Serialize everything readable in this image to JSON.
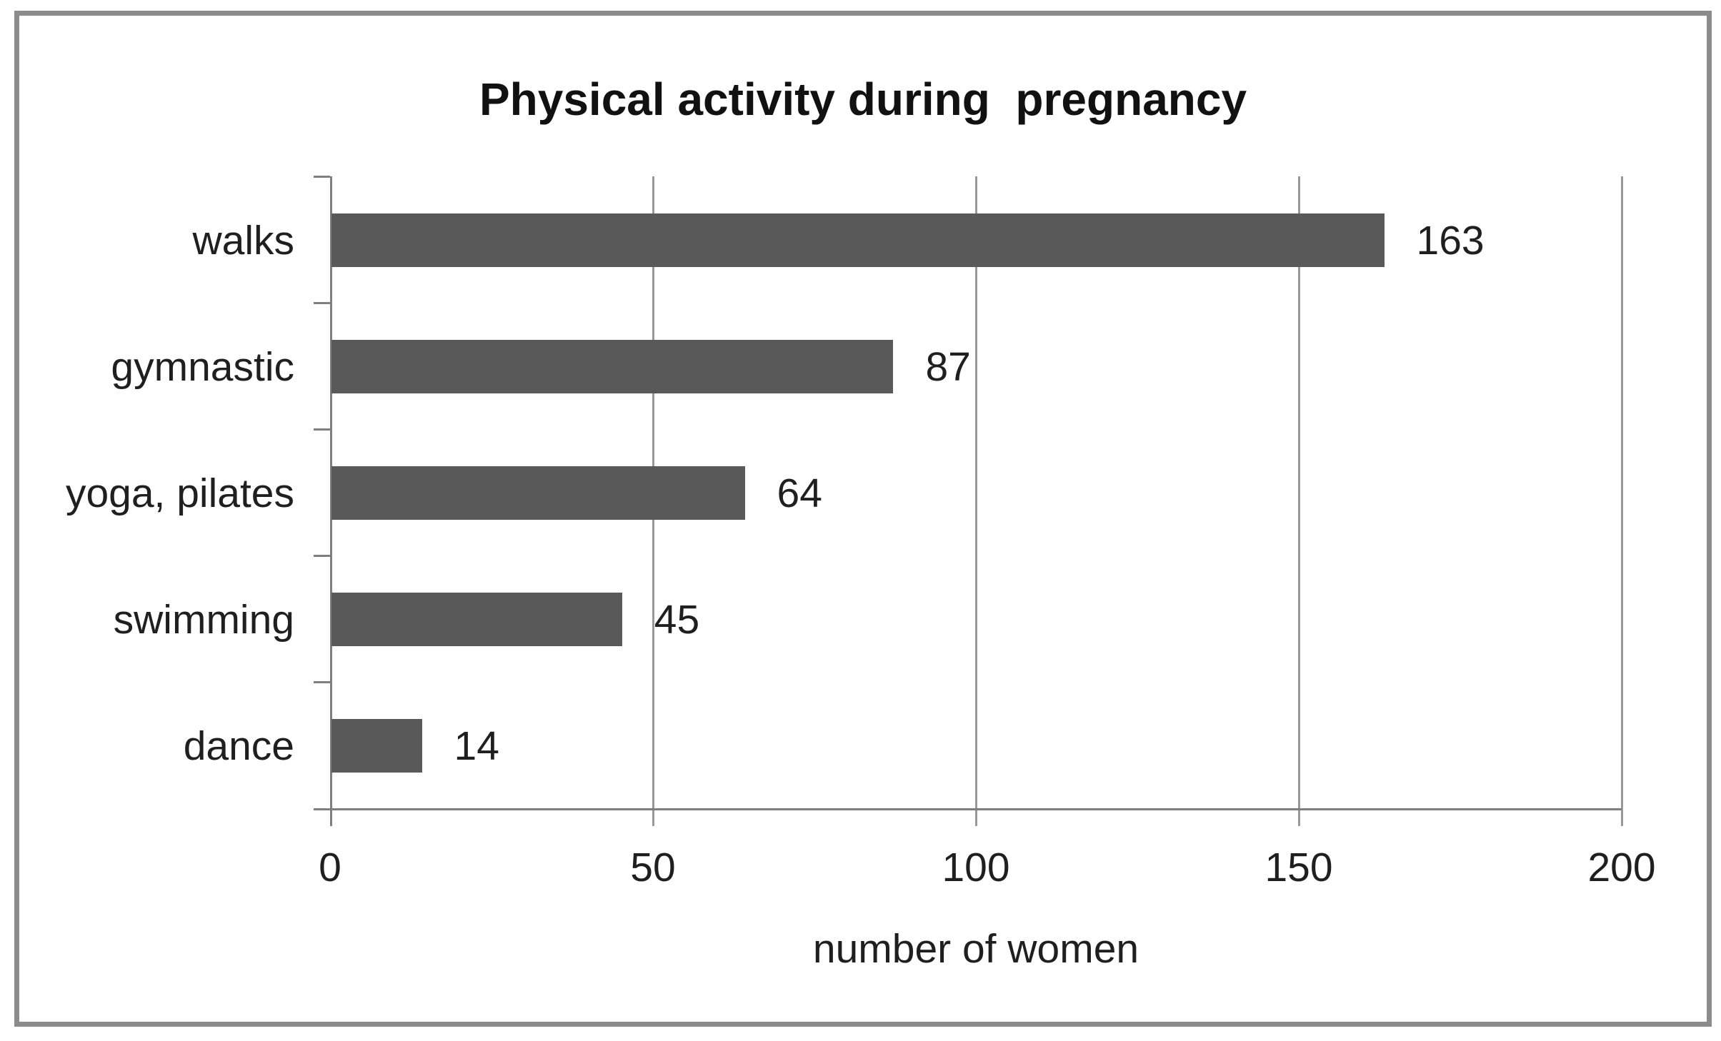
{
  "chart_data": {
    "type": "bar",
    "orientation": "horizontal",
    "title": "Physical activity during  pregnancy",
    "categories": [
      "walks",
      "gymnastic",
      "yoga, pilates",
      "swimming",
      "dance"
    ],
    "values": [
      163,
      87,
      64,
      45,
      14
    ],
    "value_labels": [
      "163",
      "87",
      "64",
      "45",
      "14"
    ],
    "xlabel": "number of women",
    "xlim": [
      0,
      200
    ],
    "xticks": [
      0,
      50,
      100,
      150,
      200
    ],
    "grid": true,
    "legend": false,
    "colors": {
      "bar": "#595959",
      "gridline": "#999999",
      "axis": "#7f7f7f",
      "text": "#1f1f1f",
      "frame_border": "#8c8c8c",
      "background": "#ffffff"
    }
  }
}
